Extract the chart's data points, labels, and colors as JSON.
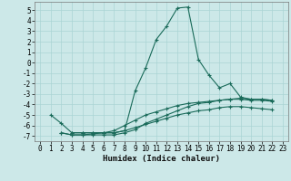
{
  "title": "",
  "xlabel": "Humidex (Indice chaleur)",
  "bg_color": "#cce8e8",
  "line_color": "#1a6b5a",
  "grid_color": "#aad4d4",
  "xlim": [
    -0.5,
    23.5
  ],
  "ylim": [
    -7.5,
    5.8
  ],
  "yticks": [
    -7,
    -6,
    -5,
    -4,
    -3,
    -2,
    -1,
    0,
    1,
    2,
    3,
    4,
    5
  ],
  "xticks": [
    0,
    1,
    2,
    3,
    4,
    5,
    6,
    7,
    8,
    9,
    10,
    11,
    12,
    13,
    14,
    15,
    16,
    17,
    18,
    19,
    20,
    21,
    22,
    23
  ],
  "series": [
    [
      null,
      -5.0,
      -5.8,
      -6.7,
      -6.7,
      -6.7,
      -6.7,
      -6.7,
      -6.5,
      -2.7,
      -0.5,
      2.2,
      3.5,
      5.2,
      5.3,
      0.3,
      -1.2,
      -2.4,
      -2.0,
      -3.3,
      -3.5,
      -3.5,
      -3.6,
      null
    ],
    [
      null,
      null,
      -6.7,
      -6.9,
      -6.9,
      -6.9,
      -6.9,
      -6.9,
      -6.7,
      -6.4,
      -5.8,
      -5.4,
      -5.0,
      -4.6,
      -4.2,
      -3.9,
      -3.8,
      -3.6,
      -3.5,
      -3.4,
      -3.5,
      -3.5,
      -3.6,
      null
    ],
    [
      null,
      null,
      -6.7,
      -6.9,
      -6.9,
      -6.8,
      -6.7,
      -6.5,
      -6.0,
      -5.5,
      -5.0,
      -4.7,
      -4.4,
      -4.1,
      -3.9,
      -3.8,
      -3.7,
      -3.6,
      -3.5,
      -3.5,
      -3.6,
      -3.6,
      -3.7,
      null
    ],
    [
      null,
      null,
      null,
      -6.7,
      -6.7,
      -6.7,
      -6.7,
      -6.7,
      -6.5,
      -6.2,
      -5.9,
      -5.6,
      -5.3,
      -5.0,
      -4.8,
      -4.6,
      -4.5,
      -4.3,
      -4.2,
      -4.2,
      -4.3,
      -4.4,
      -4.5,
      null
    ]
  ],
  "tick_fontsize": 5.5,
  "xlabel_fontsize": 6.5
}
